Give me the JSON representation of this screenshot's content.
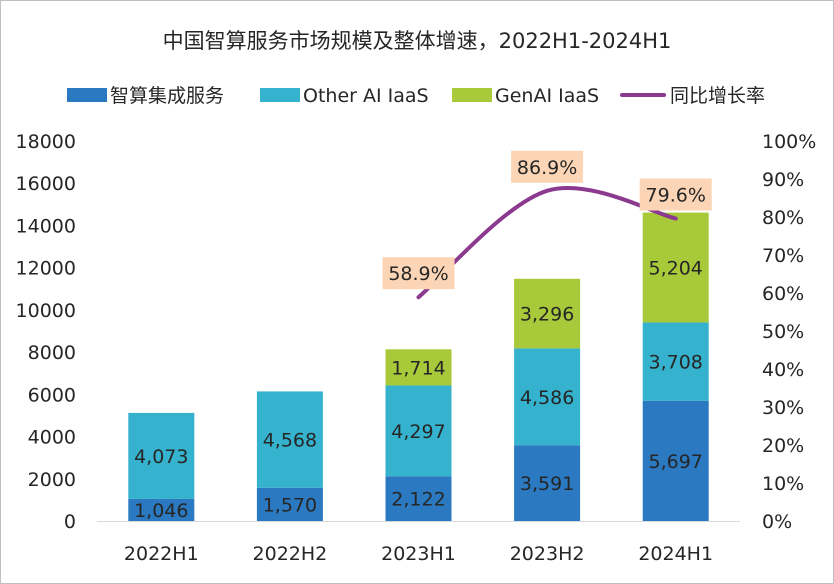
{
  "chart_data": {
    "type": "bar",
    "stacked": true,
    "title": "中国智算服务市场规模及整体增速，2022H1-2024H1",
    "categories": [
      "2022H1",
      "2022H2",
      "2023H1",
      "2023H2",
      "2024H1"
    ],
    "series": [
      {
        "name": "智算集成服务",
        "color": "#2a79c1",
        "values": [
          1046,
          1570,
          2122,
          3591,
          5697
        ],
        "labels": [
          "1,046",
          "1,570",
          "2,122",
          "3,591",
          "5,697"
        ]
      },
      {
        "name": "Other AI IaaS",
        "color": "#35b2cd",
        "values": [
          4073,
          4568,
          4297,
          4586,
          3708
        ],
        "labels": [
          "4,073",
          "4,568",
          "4,297",
          "4,586",
          "3,708"
        ]
      },
      {
        "name": "GenAI IaaS",
        "color": "#a8c93a",
        "values": [
          null,
          null,
          1714,
          3296,
          5204
        ],
        "labels": [
          "",
          "",
          "1,714",
          "3,296",
          "5,204"
        ]
      }
    ],
    "line_series": {
      "name": "同比增长率",
      "color": "#8b3a8f",
      "axis": "secondary",
      "values": [
        null,
        null,
        58.9,
        86.9,
        79.6
      ],
      "labels": [
        "",
        "",
        "58.9%",
        "86.9%",
        "79.6%"
      ]
    },
    "y_axis": {
      "min": 0,
      "max": 18000,
      "step": 2000,
      "tick_labels": [
        "0",
        "2000",
        "4000",
        "6000",
        "8000",
        "10000",
        "12000",
        "14000",
        "16000",
        "18000"
      ]
    },
    "y2_axis": {
      "min": 0,
      "max": 100,
      "step": 10,
      "tick_labels": [
        "0%",
        "10%",
        "20%",
        "30%",
        "40%",
        "50%",
        "60%",
        "70%",
        "80%",
        "90%",
        "100%"
      ]
    },
    "legend_position": "top",
    "grid": false
  }
}
